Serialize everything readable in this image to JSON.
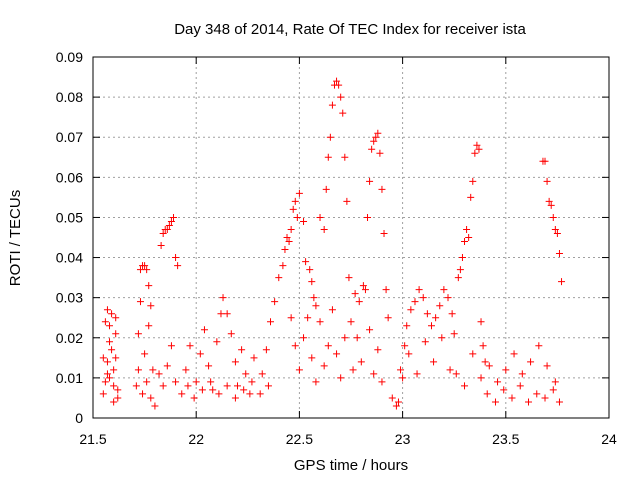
{
  "chart_data": {
    "type": "scatter",
    "title": "Day 348 of 2014, Rate Of TEC Index for receiver ista",
    "xlabel": "GPS time / hours",
    "ylabel": "ROTI / TECUs",
    "xlim": [
      21.5,
      24
    ],
    "ylim": [
      0,
      0.09
    ],
    "x_ticks": [
      "21.5",
      "22",
      "22.5",
      "23",
      "23.5",
      "24"
    ],
    "y_ticks": [
      "0",
      "0.01",
      "0.02",
      "0.03",
      "0.04",
      "0.05",
      "0.06",
      "0.07",
      "0.08",
      "0.09"
    ],
    "grid": true,
    "marker": "+",
    "series": [
      {
        "name": "ROTI",
        "color": "#ff0000",
        "points": [
          [
            21.55,
            0.006
          ],
          [
            21.56,
            0.009
          ],
          [
            21.57,
            0.011
          ],
          [
            21.57,
            0.014
          ],
          [
            21.58,
            0.019
          ],
          [
            21.58,
            0.023
          ],
          [
            21.59,
            0.026
          ],
          [
            21.59,
            0.017
          ],
          [
            21.6,
            0.008
          ],
          [
            21.6,
            0.012
          ],
          [
            21.61,
            0.021
          ],
          [
            21.61,
            0.025
          ],
          [
            21.62,
            0.007
          ],
          [
            21.62,
            0.005
          ],
          [
            21.55,
            0.015
          ],
          [
            21.56,
            0.024
          ],
          [
            21.57,
            0.027
          ],
          [
            21.6,
            0.004
          ],
          [
            21.58,
            0.01
          ],
          [
            21.61,
            0.015
          ],
          [
            21.71,
            0.008
          ],
          [
            21.72,
            0.012
          ],
          [
            21.72,
            0.021
          ],
          [
            21.73,
            0.029
          ],
          [
            21.73,
            0.037
          ],
          [
            21.74,
            0.038
          ],
          [
            21.75,
            0.038
          ],
          [
            21.76,
            0.037
          ],
          [
            21.77,
            0.033
          ],
          [
            21.78,
            0.028
          ],
          [
            21.74,
            0.006
          ],
          [
            21.76,
            0.009
          ],
          [
            21.78,
            0.005
          ],
          [
            21.79,
            0.012
          ],
          [
            21.8,
            0.003
          ],
          [
            21.75,
            0.016
          ],
          [
            21.77,
            0.023
          ],
          [
            21.83,
            0.043
          ],
          [
            21.84,
            0.046
          ],
          [
            21.85,
            0.047
          ],
          [
            21.86,
            0.047
          ],
          [
            21.87,
            0.048
          ],
          [
            21.88,
            0.049
          ],
          [
            21.89,
            0.05
          ],
          [
            21.9,
            0.04
          ],
          [
            21.91,
            0.038
          ],
          [
            21.82,
            0.011
          ],
          [
            21.84,
            0.008
          ],
          [
            21.86,
            0.013
          ],
          [
            21.88,
            0.018
          ],
          [
            21.9,
            0.009
          ],
          [
            21.95,
            0.012
          ],
          [
            21.97,
            0.018
          ],
          [
            22.0,
            0.009
          ],
          [
            22.02,
            0.016
          ],
          [
            22.04,
            0.022
          ],
          [
            22.06,
            0.013
          ],
          [
            22.08,
            0.007
          ],
          [
            22.1,
            0.019
          ],
          [
            22.12,
            0.026
          ],
          [
            22.13,
            0.03
          ],
          [
            22.15,
            0.026
          ],
          [
            22.17,
            0.021
          ],
          [
            22.19,
            0.014
          ],
          [
            22.2,
            0.008
          ],
          [
            22.22,
            0.017
          ],
          [
            22.24,
            0.011
          ],
          [
            22.26,
            0.006
          ],
          [
            22.28,
            0.015
          ],
          [
            21.93,
            0.006
          ],
          [
            21.96,
            0.008
          ],
          [
            21.99,
            0.005
          ],
          [
            22.03,
            0.007
          ],
          [
            22.07,
            0.009
          ],
          [
            22.11,
            0.006
          ],
          [
            22.15,
            0.008
          ],
          [
            22.19,
            0.005
          ],
          [
            22.23,
            0.007
          ],
          [
            22.27,
            0.009
          ],
          [
            22.31,
            0.006
          ],
          [
            22.35,
            0.008
          ],
          [
            22.32,
            0.011
          ],
          [
            22.34,
            0.017
          ],
          [
            22.36,
            0.024
          ],
          [
            22.38,
            0.029
          ],
          [
            22.4,
            0.035
          ],
          [
            22.42,
            0.038
          ],
          [
            22.43,
            0.042
          ],
          [
            22.44,
            0.045
          ],
          [
            22.45,
            0.044
          ],
          [
            22.46,
            0.047
          ],
          [
            22.47,
            0.052
          ],
          [
            22.48,
            0.054
          ],
          [
            22.49,
            0.05
          ],
          [
            22.5,
            0.056
          ],
          [
            22.52,
            0.049
          ],
          [
            22.53,
            0.039
          ],
          [
            22.55,
            0.037
          ],
          [
            22.56,
            0.034
          ],
          [
            22.57,
            0.03
          ],
          [
            22.58,
            0.028
          ],
          [
            22.46,
            0.025
          ],
          [
            22.48,
            0.018
          ],
          [
            22.5,
            0.012
          ],
          [
            22.52,
            0.02
          ],
          [
            22.54,
            0.025
          ],
          [
            22.56,
            0.015
          ],
          [
            22.58,
            0.009
          ],
          [
            22.6,
            0.024
          ],
          [
            22.62,
            0.013
          ],
          [
            22.64,
            0.018
          ],
          [
            22.63,
            0.057
          ],
          [
            22.64,
            0.065
          ],
          [
            22.65,
            0.07
          ],
          [
            22.66,
            0.078
          ],
          [
            22.67,
            0.083
          ],
          [
            22.68,
            0.084
          ],
          [
            22.69,
            0.083
          ],
          [
            22.7,
            0.08
          ],
          [
            22.71,
            0.076
          ],
          [
            22.72,
            0.065
          ],
          [
            22.73,
            0.054
          ],
          [
            22.74,
            0.035
          ],
          [
            22.75,
            0.024
          ],
          [
            22.62,
            0.047
          ],
          [
            22.6,
            0.05
          ],
          [
            22.66,
            0.027
          ],
          [
            22.68,
            0.016
          ],
          [
            22.7,
            0.01
          ],
          [
            22.72,
            0.02
          ],
          [
            22.76,
            0.012
          ],
          [
            22.77,
            0.031
          ],
          [
            22.79,
            0.029
          ],
          [
            22.81,
            0.033
          ],
          [
            22.82,
            0.032
          ],
          [
            22.83,
            0.05
          ],
          [
            22.84,
            0.059
          ],
          [
            22.85,
            0.067
          ],
          [
            22.86,
            0.069
          ],
          [
            22.87,
            0.07
          ],
          [
            22.88,
            0.071
          ],
          [
            22.89,
            0.066
          ],
          [
            22.9,
            0.057
          ],
          [
            22.91,
            0.046
          ],
          [
            22.92,
            0.032
          ],
          [
            22.93,
            0.025
          ],
          [
            22.78,
            0.02
          ],
          [
            22.8,
            0.014
          ],
          [
            22.84,
            0.022
          ],
          [
            22.86,
            0.011
          ],
          [
            22.88,
            0.017
          ],
          [
            22.9,
            0.009
          ],
          [
            22.95,
            0.005
          ],
          [
            22.97,
            0.003
          ],
          [
            22.98,
            0.004
          ],
          [
            23.0,
            0.01
          ],
          [
            23.01,
            0.018
          ],
          [
            23.02,
            0.023
          ],
          [
            23.04,
            0.027
          ],
          [
            23.06,
            0.029
          ],
          [
            23.08,
            0.032
          ],
          [
            23.1,
            0.03
          ],
          [
            23.12,
            0.026
          ],
          [
            23.14,
            0.023
          ],
          [
            23.16,
            0.025
          ],
          [
            23.18,
            0.028
          ],
          [
            23.2,
            0.032
          ],
          [
            23.22,
            0.03
          ],
          [
            23.24,
            0.026
          ],
          [
            22.99,
            0.012
          ],
          [
            23.03,
            0.016
          ],
          [
            23.07,
            0.011
          ],
          [
            23.11,
            0.019
          ],
          [
            23.15,
            0.014
          ],
          [
            23.19,
            0.02
          ],
          [
            23.23,
            0.012
          ],
          [
            23.25,
            0.021
          ],
          [
            23.27,
            0.035
          ],
          [
            23.28,
            0.037
          ],
          [
            23.29,
            0.04
          ],
          [
            23.3,
            0.044
          ],
          [
            23.31,
            0.047
          ],
          [
            23.32,
            0.045
          ],
          [
            23.33,
            0.055
          ],
          [
            23.34,
            0.059
          ],
          [
            23.35,
            0.066
          ],
          [
            23.36,
            0.068
          ],
          [
            23.37,
            0.067
          ],
          [
            23.38,
            0.024
          ],
          [
            23.39,
            0.018
          ],
          [
            23.4,
            0.014
          ],
          [
            23.26,
            0.011
          ],
          [
            23.3,
            0.008
          ],
          [
            23.34,
            0.016
          ],
          [
            23.38,
            0.01
          ],
          [
            23.42,
            0.013
          ],
          [
            23.46,
            0.009
          ],
          [
            23.5,
            0.012
          ],
          [
            23.54,
            0.016
          ],
          [
            23.58,
            0.011
          ],
          [
            23.62,
            0.014
          ],
          [
            23.66,
            0.018
          ],
          [
            23.7,
            0.013
          ],
          [
            23.74,
            0.009
          ],
          [
            23.68,
            0.064
          ],
          [
            23.69,
            0.064
          ],
          [
            23.7,
            0.059
          ],
          [
            23.71,
            0.054
          ],
          [
            23.72,
            0.053
          ],
          [
            23.73,
            0.05
          ],
          [
            23.74,
            0.047
          ],
          [
            23.75,
            0.046
          ],
          [
            23.76,
            0.041
          ],
          [
            23.77,
            0.034
          ],
          [
            23.41,
            0.006
          ],
          [
            23.45,
            0.004
          ],
          [
            23.49,
            0.007
          ],
          [
            23.53,
            0.005
          ],
          [
            23.57,
            0.008
          ],
          [
            23.61,
            0.004
          ],
          [
            23.65,
            0.006
          ],
          [
            23.69,
            0.005
          ],
          [
            23.73,
            0.007
          ],
          [
            23.76,
            0.004
          ]
        ]
      }
    ]
  }
}
